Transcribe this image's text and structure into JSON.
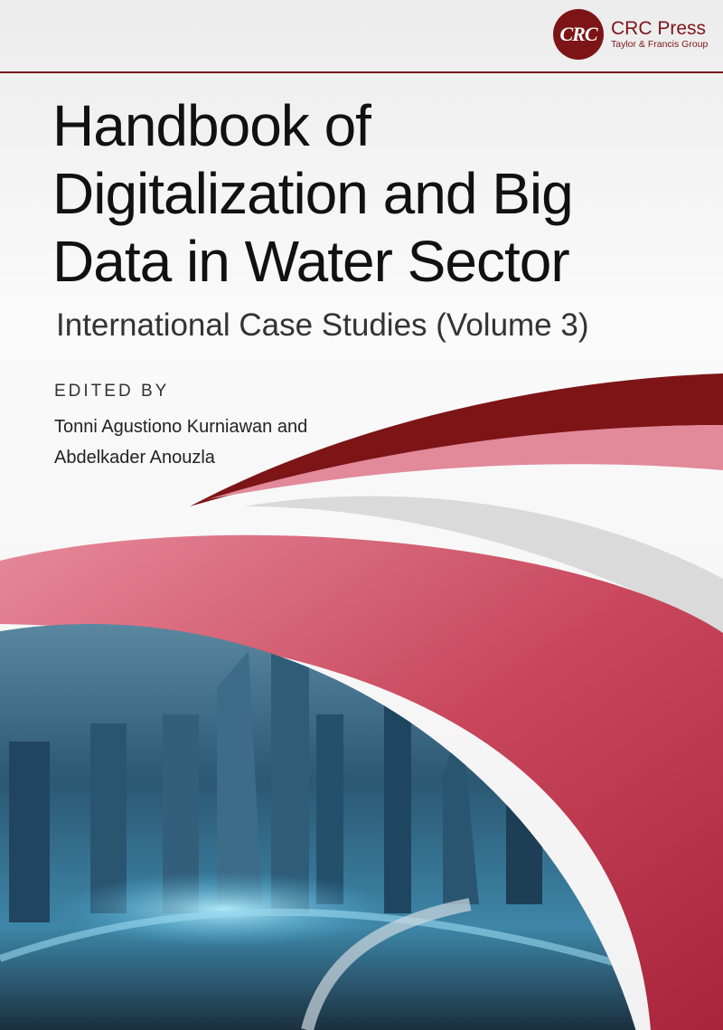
{
  "publisher": {
    "name": "CRC Press",
    "group": "Taylor & Francis Group",
    "logo_text": "CRC",
    "color": "#7d1517"
  },
  "book": {
    "title_lines": [
      "Handbook of",
      "Digitalization and Big",
      "Data in Water Sector"
    ],
    "subtitle": "International Case Studies (Volume 3)",
    "edited_by_label": "EDITED BY",
    "authors": [
      "Tonni Agustiono Kurniawan and",
      "Abdelkader Anouzla"
    ]
  },
  "colors": {
    "dark_red": "#7d1517",
    "pink": "#d86a7c",
    "gray": "#dcdcdc",
    "city_blue": "#1d4a66"
  }
}
